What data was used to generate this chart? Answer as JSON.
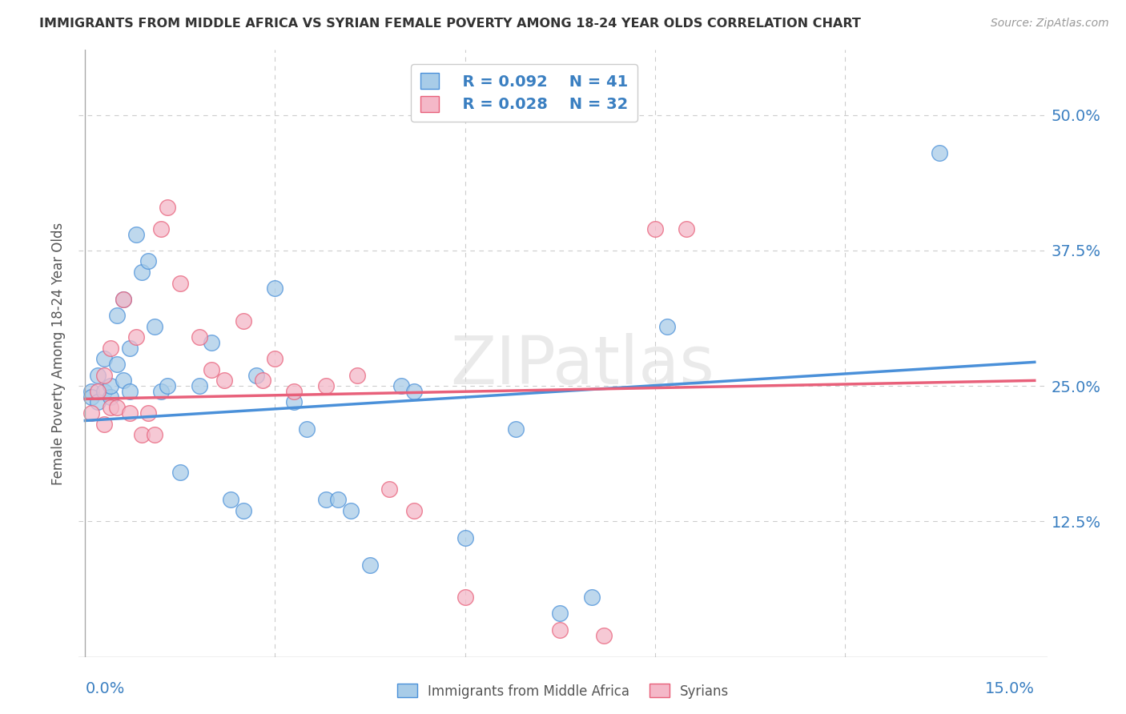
{
  "title": "IMMIGRANTS FROM MIDDLE AFRICA VS SYRIAN FEMALE POVERTY AMONG 18-24 YEAR OLDS CORRELATION CHART",
  "source": "Source: ZipAtlas.com",
  "ylabel": "Female Poverty Among 18-24 Year Olds",
  "ytick_labels": [
    "12.5%",
    "25.0%",
    "37.5%",
    "50.0%"
  ],
  "ytick_values": [
    0.125,
    0.25,
    0.375,
    0.5
  ],
  "ylim": [
    0.0,
    0.56
  ],
  "xlim": [
    -0.001,
    0.152
  ],
  "watermark": "ZIPatlas",
  "legend_R1": "R = 0.092",
  "legend_N1": "N = 41",
  "legend_R2": "R = 0.028",
  "legend_N2": "N = 32",
  "blue_color": "#a8cce8",
  "pink_color": "#f4b8c8",
  "blue_line_color": "#4a90d9",
  "pink_line_color": "#e8607a",
  "title_color": "#333333",
  "legend_text_color": "#3a7fc1",
  "axis_label_color": "#3a7fc1",
  "blue_scatter_x": [
    0.001,
    0.001,
    0.002,
    0.002,
    0.003,
    0.003,
    0.004,
    0.004,
    0.005,
    0.005,
    0.006,
    0.006,
    0.007,
    0.007,
    0.008,
    0.009,
    0.01,
    0.011,
    0.012,
    0.013,
    0.015,
    0.018,
    0.02,
    0.023,
    0.025,
    0.027,
    0.03,
    0.033,
    0.035,
    0.038,
    0.04,
    0.042,
    0.045,
    0.05,
    0.052,
    0.06,
    0.068,
    0.075,
    0.08,
    0.092,
    0.135
  ],
  "blue_scatter_y": [
    0.245,
    0.24,
    0.26,
    0.235,
    0.245,
    0.275,
    0.24,
    0.25,
    0.315,
    0.27,
    0.33,
    0.255,
    0.285,
    0.245,
    0.39,
    0.355,
    0.365,
    0.305,
    0.245,
    0.25,
    0.17,
    0.25,
    0.29,
    0.145,
    0.135,
    0.26,
    0.34,
    0.235,
    0.21,
    0.145,
    0.145,
    0.135,
    0.085,
    0.25,
    0.245,
    0.11,
    0.21,
    0.04,
    0.055,
    0.305,
    0.465
  ],
  "pink_scatter_x": [
    0.001,
    0.002,
    0.003,
    0.003,
    0.004,
    0.004,
    0.005,
    0.006,
    0.007,
    0.008,
    0.009,
    0.01,
    0.011,
    0.012,
    0.013,
    0.015,
    0.018,
    0.02,
    0.022,
    0.025,
    0.028,
    0.03,
    0.033,
    0.038,
    0.043,
    0.048,
    0.052,
    0.06,
    0.075,
    0.082,
    0.09,
    0.095
  ],
  "pink_scatter_y": [
    0.225,
    0.245,
    0.215,
    0.26,
    0.23,
    0.285,
    0.23,
    0.33,
    0.225,
    0.295,
    0.205,
    0.225,
    0.205,
    0.395,
    0.415,
    0.345,
    0.295,
    0.265,
    0.255,
    0.31,
    0.255,
    0.275,
    0.245,
    0.25,
    0.26,
    0.155,
    0.135,
    0.055,
    0.025,
    0.02,
    0.395,
    0.395
  ],
  "blue_trend_x": [
    0.0,
    0.15
  ],
  "blue_trend_y": [
    0.218,
    0.272
  ],
  "pink_trend_x": [
    0.0,
    0.15
  ],
  "pink_trend_y": [
    0.238,
    0.255
  ],
  "background_color": "#ffffff",
  "grid_color": "#cccccc",
  "legend_entry1": "  R = 0.092    N = 41",
  "legend_entry2": "  R = 0.028    N = 32"
}
